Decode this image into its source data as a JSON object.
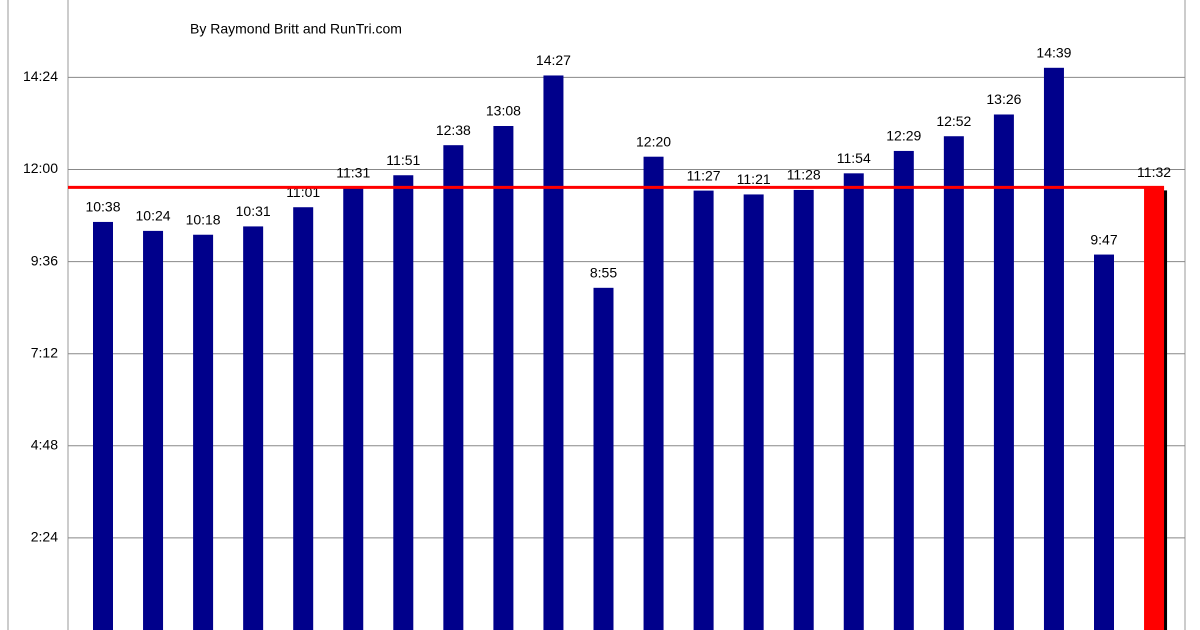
{
  "chart_data": {
    "type": "bar",
    "subtitle": "By Raymond Britt and RunTri.com",
    "values": [
      638,
      624,
      618,
      631,
      661,
      691,
      711,
      758,
      788,
      867,
      535,
      740,
      687,
      681,
      688,
      714,
      749,
      772,
      806,
      879,
      587,
      692
    ],
    "value_labels": [
      "10:38",
      "10:24",
      "10:18",
      "10:31",
      "11:01",
      "11:31",
      "11:51",
      "12:38",
      "13:08",
      "14:27",
      "8:55",
      "12:20",
      "11:27",
      "11:21",
      "11:28",
      "11:54",
      "12:29",
      "12:52",
      "13:26",
      "14:39",
      "9:47",
      "11:32"
    ],
    "colors": [
      "#00008b",
      "#00008b",
      "#00008b",
      "#00008b",
      "#00008b",
      "#00008b",
      "#00008b",
      "#00008b",
      "#00008b",
      "#00008b",
      "#00008b",
      "#00008b",
      "#00008b",
      "#00008b",
      "#00008b",
      "#00008b",
      "#00008b",
      "#00008b",
      "#00008b",
      "#00008b",
      "#00008b",
      "#ff0000"
    ],
    "reference_line": {
      "value": 692,
      "color": "#ff0000"
    },
    "ylim": [
      0,
      985
    ],
    "yticks": [
      {
        "value": 144,
        "label": "2:24"
      },
      {
        "value": 288,
        "label": "4:48"
      },
      {
        "value": 432,
        "label": "7:12"
      },
      {
        "value": 576,
        "label": "9:36"
      },
      {
        "value": 720,
        "label": "12:00"
      },
      {
        "value": 864,
        "label": "14:24"
      }
    ],
    "grid": true
  }
}
